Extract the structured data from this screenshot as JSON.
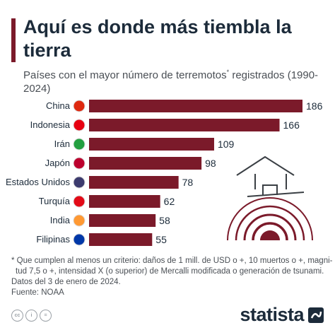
{
  "header": {
    "title": "Aquí es donde más tiembla la tierra",
    "subtitle_main": "Países con el mayor número de terremotos",
    "subtitle_mark": "*",
    "subtitle_rest": " registrados (1990-2024)"
  },
  "chart_data": {
    "type": "bar",
    "orientation": "horizontal",
    "categories": [
      "China",
      "Indonesia",
      "Irán",
      "Japón",
      "Estados Unidos",
      "Turquía",
      "India",
      "Filipinas"
    ],
    "values": [
      186,
      166,
      109,
      98,
      78,
      62,
      58,
      55
    ],
    "bar_color": "#7b1a2a",
    "grid": false
  },
  "footnote": {
    "lines": [
      "* Que cumplen al menos un criterio: daños de 1 mill. de USD o +, 10 muertos o +, magni-",
      "  tud 7,5 o +, intensidad X (o superior) de Mercalli modificada o generación de tsunami.",
      "Datos del 3 de enero de 2024.",
      "Fuente: NOAA"
    ]
  },
  "footer": {
    "brand": "statista",
    "license_icons": [
      "cc-icon",
      "by-icon",
      "equals-icon"
    ]
  },
  "colors": {
    "accent": "#7b1a2a",
    "text": "#1c2b3a"
  }
}
